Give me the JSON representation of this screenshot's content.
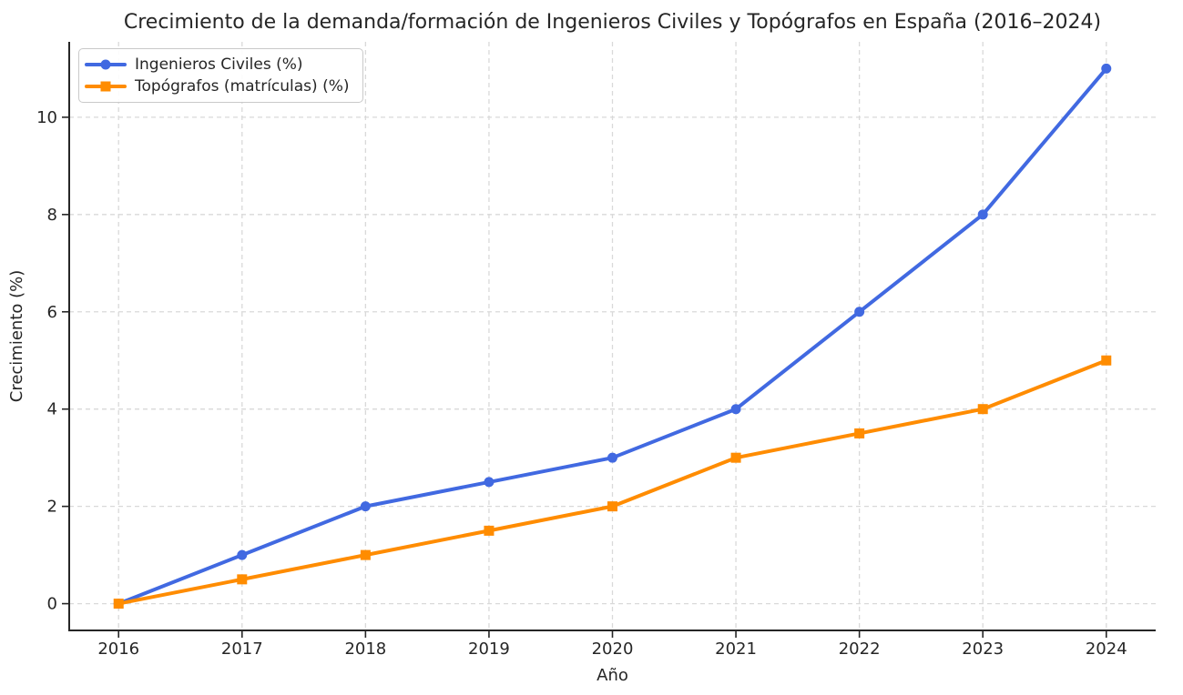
{
  "chart_data": {
    "type": "line",
    "title": "Crecimiento de la demanda/formación de Ingenieros Civiles y Topógrafos en España (2016–2024)",
    "xlabel": "Año",
    "ylabel": "Crecimiento (%)",
    "x": [
      2016,
      2017,
      2018,
      2019,
      2020,
      2021,
      2022,
      2023,
      2024
    ],
    "series": [
      {
        "name": "Ingenieros Civiles (%)",
        "values": [
          0,
          1,
          2,
          2.5,
          3,
          4,
          6,
          8,
          11
        ],
        "color": "#4169e1",
        "marker": "circle"
      },
      {
        "name": "Topógrafos (matrículas) (%)",
        "values": [
          0,
          0.5,
          1,
          1.5,
          2,
          3,
          3.5,
          4,
          5
        ],
        "color": "#ff8c00",
        "marker": "square"
      }
    ],
    "yticks": [
      0,
      2,
      4,
      6,
      8,
      10
    ],
    "ylim": [
      -0.55,
      11.55
    ],
    "xlim": [
      2015.6,
      2024.4
    ],
    "grid": true,
    "grid_style": "dashed",
    "legend_position": "upper-left",
    "colors": {
      "text": "#262626",
      "spine": "#262626",
      "gridline": "#d9d9d9",
      "legend_border": "#c9c9c9",
      "background": "#ffffff"
    }
  }
}
